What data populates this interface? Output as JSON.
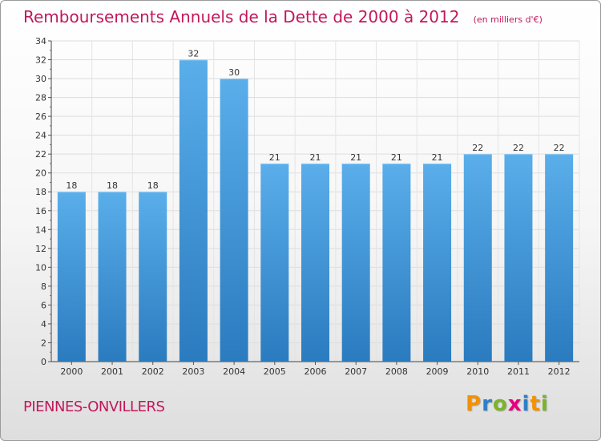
{
  "chart_data": {
    "type": "bar",
    "title": "Remboursements Annuels de la Dette de 2000 à 2012",
    "unit_note": "(en milliers d'€)",
    "categories": [
      "2000",
      "2001",
      "2002",
      "2003",
      "2004",
      "2005",
      "2006",
      "2007",
      "2008",
      "2009",
      "2010",
      "2011",
      "2012"
    ],
    "values": [
      18,
      18,
      18,
      32,
      30,
      21,
      21,
      21,
      21,
      21,
      22,
      22,
      22
    ],
    "ylim": [
      0,
      34
    ],
    "yticks": [
      0,
      2,
      4,
      6,
      8,
      10,
      12,
      14,
      16,
      18,
      20,
      22,
      24,
      26,
      28,
      30,
      32,
      34
    ],
    "grid": true,
    "bar_color": "#3a8fd6"
  },
  "location": "PIENNES-ONVILLERS",
  "logo": {
    "text": "Proxiti",
    "letter_colors": [
      "#f39200",
      "#2e7fc6",
      "#7cb32a",
      "#e6007e",
      "#2e7fc6",
      "#f39200",
      "#7cb32a"
    ]
  }
}
